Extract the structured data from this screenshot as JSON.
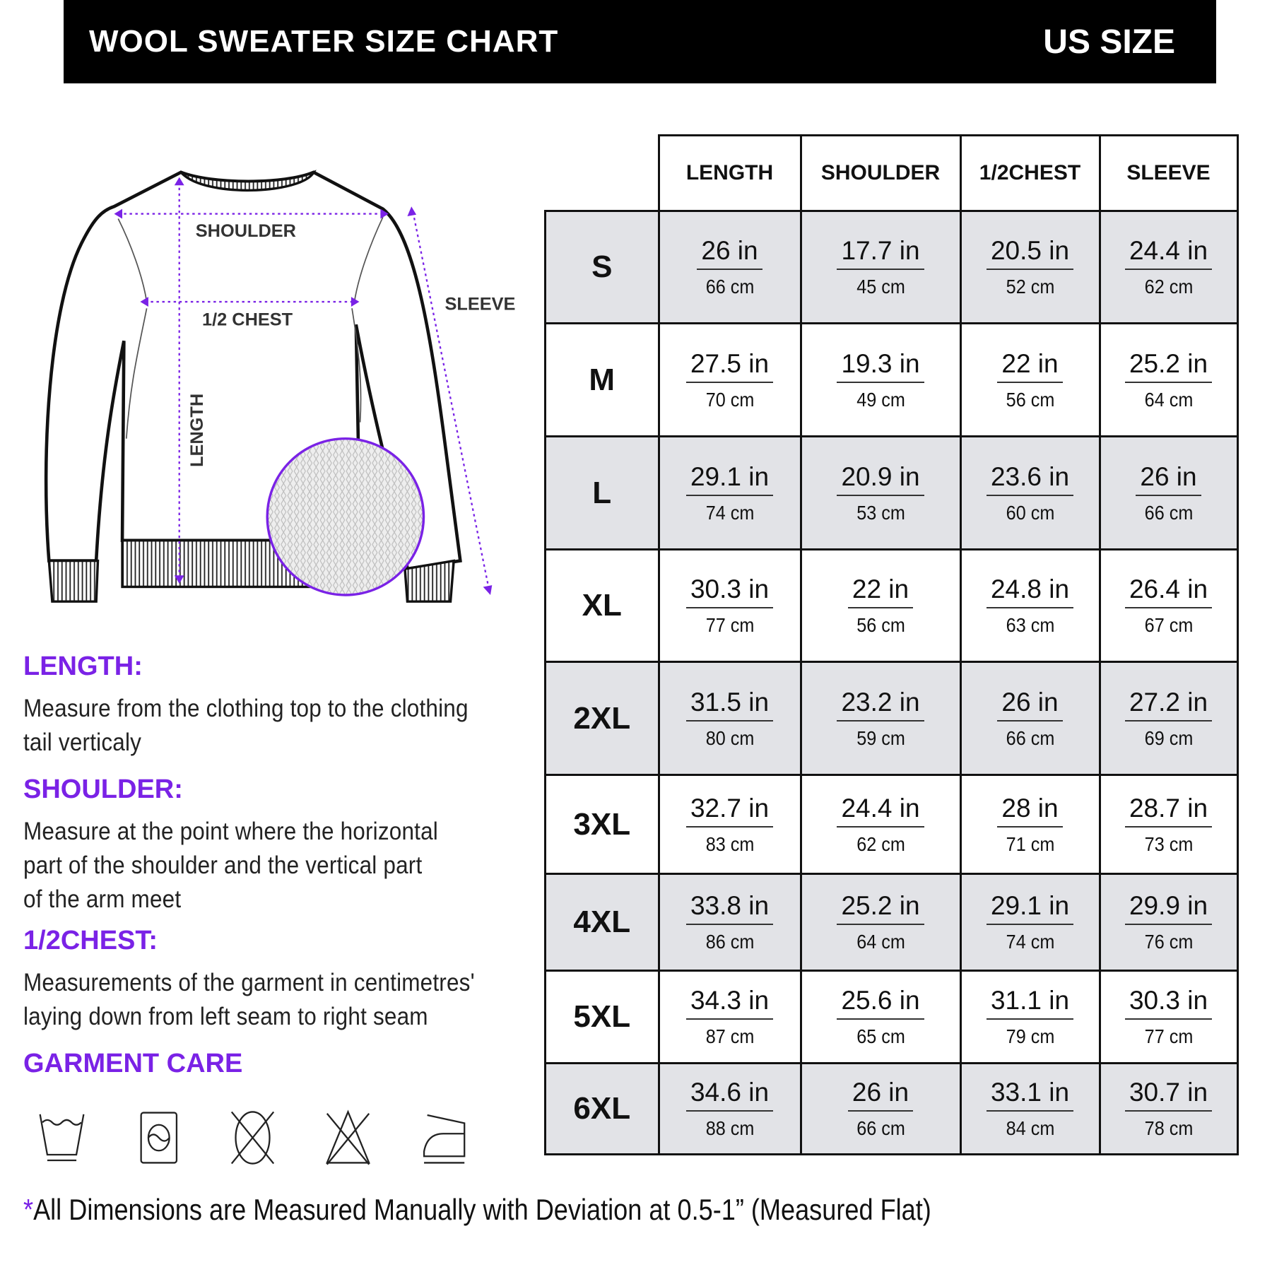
{
  "header": {
    "title": "WOOL SWEATER SIZE CHART",
    "region": "US SIZE"
  },
  "diagram": {
    "labels": {
      "shoulder": "SHOULDER",
      "chest": "1/2 CHEST",
      "sleeve": "SLEEVE",
      "length": "LENGTH"
    },
    "accent": "#7a22e6"
  },
  "descriptions": [
    {
      "title": "LENGTH:",
      "lines": [
        "Measure from the clothing top to the clothing",
        "tail verticaly"
      ]
    },
    {
      "title": "SHOULDER:",
      "lines": [
        "Measure at the point where the horizontal",
        "part of the shoulder and the vertical part",
        "of the arm meet"
      ]
    },
    {
      "title": "1/2CHEST:",
      "lines": [
        "Measurements of the garment in centimetres'",
        "laying down from left seam to right seam"
      ]
    }
  ],
  "care": {
    "title": "GARMENT CARE",
    "icons": [
      "hand-wash-icon",
      "tumble-dry-icon",
      "do-not-dry-clean-icon",
      "do-not-bleach-icon",
      "iron-icon"
    ]
  },
  "footer": {
    "star": "*",
    "text": "All Dimensions are Measured Manually with Deviation at 0.5-1”  (Measured Flat)"
  },
  "table": {
    "columns": [
      "LENGTH",
      "SHOULDER",
      "1/2CHEST",
      "SLEEVE"
    ],
    "rows": [
      {
        "size": "S",
        "cells": [
          [
            "26 in",
            "66 cm"
          ],
          [
            "17.7 in",
            "45 cm"
          ],
          [
            "20.5 in",
            "52 cm"
          ],
          [
            "24.4 in",
            "62 cm"
          ]
        ]
      },
      {
        "size": "M",
        "cells": [
          [
            "27.5 in",
            "70 cm"
          ],
          [
            "19.3 in",
            "49 cm"
          ],
          [
            "22 in",
            "56 cm"
          ],
          [
            "25.2 in",
            "64 cm"
          ]
        ]
      },
      {
        "size": "L",
        "cells": [
          [
            "29.1 in",
            "74 cm"
          ],
          [
            "20.9 in",
            "53 cm"
          ],
          [
            "23.6 in",
            "60 cm"
          ],
          [
            "26 in",
            "66 cm"
          ]
        ]
      },
      {
        "size": "XL",
        "cells": [
          [
            "30.3 in",
            "77 cm"
          ],
          [
            "22 in",
            "56 cm"
          ],
          [
            "24.8 in",
            "63 cm"
          ],
          [
            "26.4 in",
            "67 cm"
          ]
        ]
      },
      {
        "size": "2XL",
        "cells": [
          [
            "31.5 in",
            "80 cm"
          ],
          [
            "23.2 in",
            "59 cm"
          ],
          [
            "26 in",
            "66 cm"
          ],
          [
            "27.2 in",
            "69 cm"
          ]
        ]
      },
      {
        "size": "3XL",
        "cells": [
          [
            "32.7 in",
            "83 cm"
          ],
          [
            "24.4 in",
            "62 cm"
          ],
          [
            "28 in",
            "71 cm"
          ],
          [
            "28.7 in",
            "73 cm"
          ]
        ]
      },
      {
        "size": "4XL",
        "cells": [
          [
            "33.8 in",
            "86 cm"
          ],
          [
            "25.2 in",
            "64 cm"
          ],
          [
            "29.1 in",
            "74 cm"
          ],
          [
            "29.9 in",
            "76 cm"
          ]
        ]
      },
      {
        "size": "5XL",
        "cells": [
          [
            "34.3 in",
            "87 cm"
          ],
          [
            "25.6 in",
            "65 cm"
          ],
          [
            "31.1 in",
            "79 cm"
          ],
          [
            "30.3 in",
            "77 cm"
          ]
        ]
      },
      {
        "size": "6XL",
        "cells": [
          [
            "34.6 in",
            "88 cm"
          ],
          [
            "26 in",
            "66 cm"
          ],
          [
            "33.1 in",
            "84 cm"
          ],
          [
            "30.7 in",
            "78 cm"
          ]
        ]
      }
    ]
  }
}
